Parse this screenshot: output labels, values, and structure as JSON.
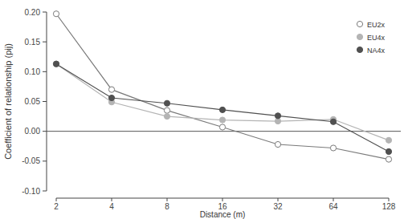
{
  "chart_data": {
    "type": "line",
    "x_label": "Distance (m)",
    "y_label": "Coefficient of relationship (pij)",
    "categories": [
      "2",
      "4",
      "8",
      "16",
      "32",
      "64",
      "128"
    ],
    "series": [
      {
        "name": "EU2x",
        "color": "#7a7a7a",
        "marker": "open_circle",
        "values": [
          0.197,
          0.07,
          0.035,
          0.007,
          -0.022,
          -0.028,
          -0.047
        ]
      },
      {
        "name": "EU4x",
        "color": "#b4b4b4",
        "marker": "circle",
        "values": [
          0.113,
          0.049,
          0.025,
          0.019,
          0.017,
          0.02,
          -0.015
        ]
      },
      {
        "name": "NA4x",
        "color": "#505050",
        "marker": "circle",
        "values": [
          0.113,
          0.056,
          0.047,
          0.036,
          0.026,
          0.016,
          -0.034
        ]
      }
    ],
    "ylim": [
      -0.1,
      0.2
    ],
    "yticks": [
      {
        "value": -0.1,
        "label": "-0.10"
      },
      {
        "value": -0.05,
        "label": "-0.05"
      },
      {
        "value": 0,
        "label": "0.00"
      },
      {
        "value": 0.05,
        "label": "0.05"
      },
      {
        "value": 0.1,
        "label": "0.10"
      },
      {
        "value": 0.15,
        "label": "0.15"
      },
      {
        "value": 0.2,
        "label": "0.20"
      }
    ],
    "reference_lines": [
      0
    ],
    "grid": false,
    "legend": "top-right"
  }
}
